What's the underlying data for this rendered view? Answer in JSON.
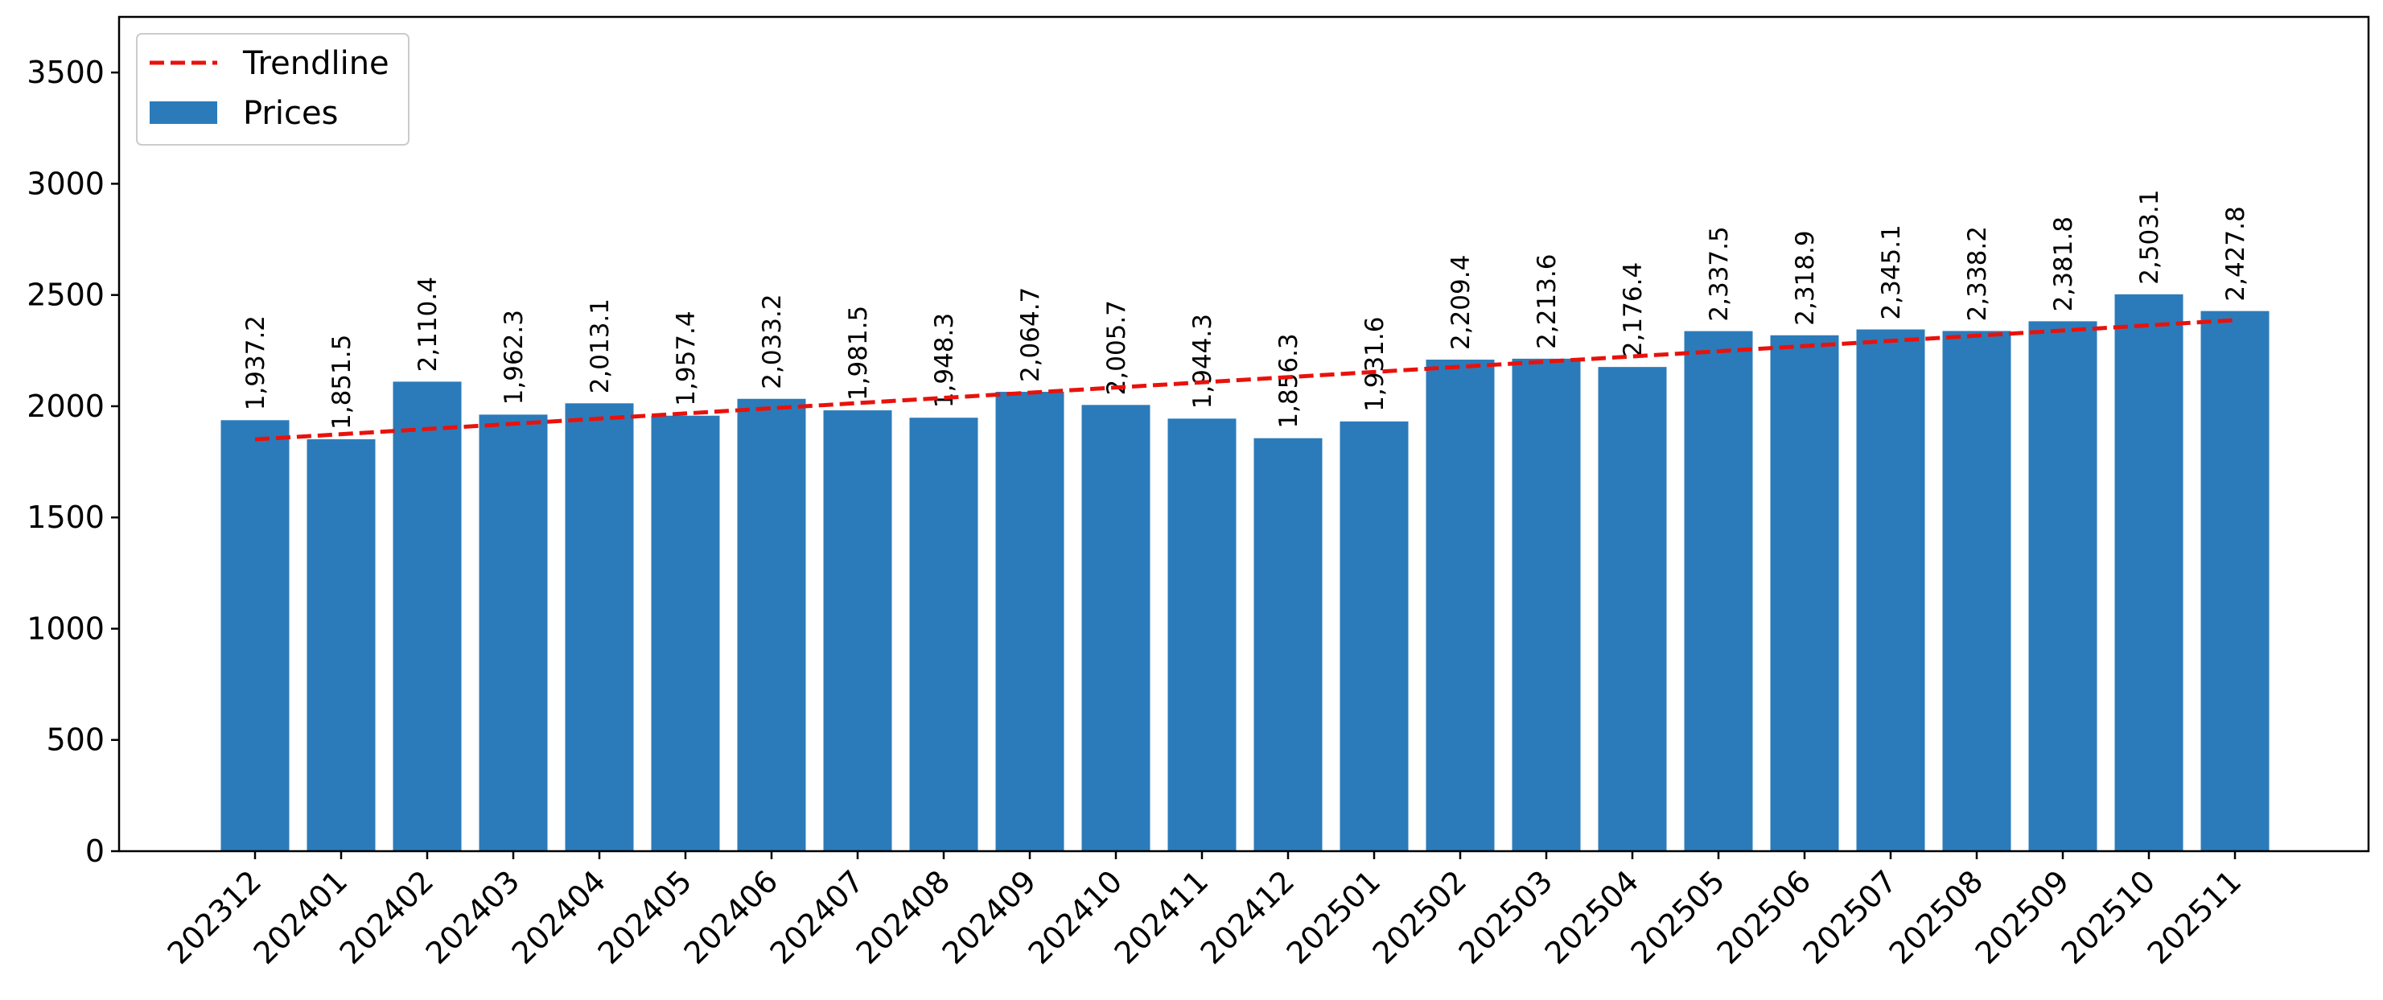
{
  "chart_data": {
    "type": "bar",
    "title": "",
    "xlabel": "",
    "ylabel": "",
    "categories": [
      "202312",
      "202401",
      "202402",
      "202403",
      "202404",
      "202405",
      "202406",
      "202407",
      "202408",
      "202409",
      "202410",
      "202411",
      "202412",
      "202501",
      "202502",
      "202503",
      "202504",
      "202505",
      "202506",
      "202507",
      "202508",
      "202509",
      "202510",
      "202511"
    ],
    "series": [
      {
        "name": "Prices",
        "type": "bar",
        "color": "#2b7bba",
        "values": [
          1937.2,
          1851.5,
          2110.4,
          1962.3,
          2013.1,
          1957.4,
          2033.2,
          1981.5,
          1948.3,
          2064.7,
          2005.7,
          1944.3,
          1856.3,
          1931.6,
          2209.4,
          2213.6,
          2176.4,
          2337.5,
          2318.9,
          2345.1,
          2338.2,
          2381.8,
          2503.1,
          2427.8
        ],
        "labels": [
          "1,937.2",
          "1,851.5",
          "2,110.4",
          "1,962.3",
          "2,013.1",
          "1,957.4",
          "2,033.2",
          "1,981.5",
          "1,948.3",
          "2,064.7",
          "2,005.7",
          "1,944.3",
          "1,856.3",
          "1,931.6",
          "2,209.4",
          "2,213.6",
          "2,176.4",
          "2,337.5",
          "2,318.9",
          "2,345.1",
          "2,338.2",
          "2,381.8",
          "2,503.1",
          "2,427.8"
        ]
      },
      {
        "name": "Trendline",
        "type": "line",
        "style": "dashed",
        "color": "#e8120c",
        "start": 1851,
        "end": 2387
      }
    ],
    "ylim": [
      0,
      3750
    ],
    "yticks": [
      0,
      500,
      1000,
      1500,
      2000,
      2500,
      3000,
      3500
    ],
    "ytick_labels": [
      "0",
      "500",
      "1000",
      "1500",
      "2000",
      "2500",
      "3000",
      "3500"
    ],
    "grid": false,
    "legend_position": "top-left"
  }
}
